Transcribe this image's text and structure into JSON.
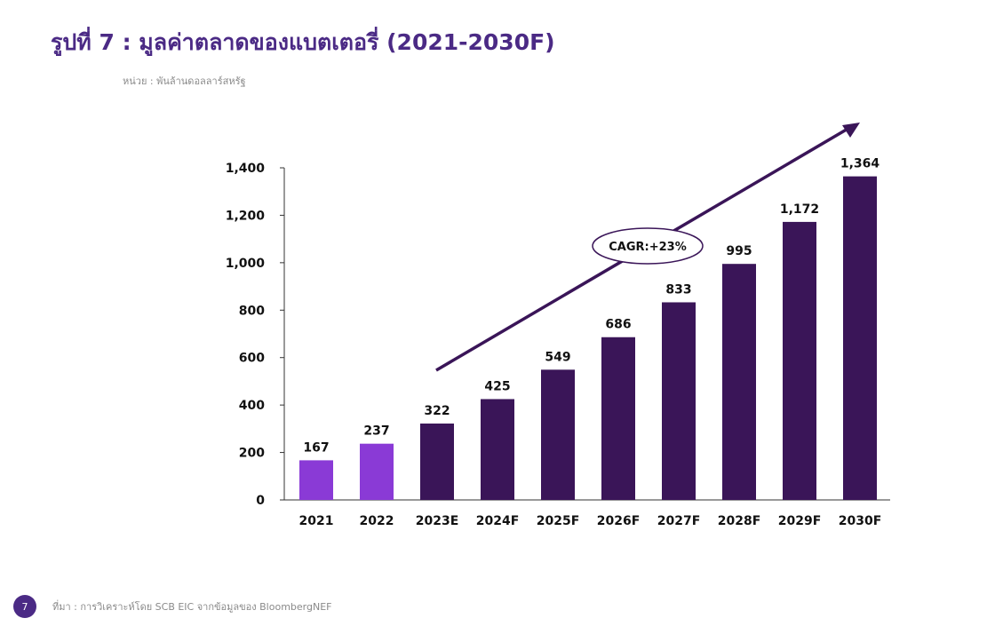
{
  "title": "รูปที่ 7 : มูลค่าตลาดของแบตเตอรี่ (2021-2030F)",
  "unit_note": "หน่วย : พันล้านดอลลาร์สหรัฐ",
  "page_number": "7",
  "source": "ที่มา : การวิเคราะห์โดย SCB EIC จากข้อมูลของ BloombergNEF",
  "colors": {
    "title": "#4b2a85",
    "actual_bar": "#8a3ad6",
    "forecast_bar": "#3a1558",
    "arrow": "#3a1558"
  },
  "chart_data": {
    "type": "bar",
    "categories": [
      "2021",
      "2022",
      "2023E",
      "2024F",
      "2025F",
      "2026F",
      "2027F",
      "2028F",
      "2029F",
      "2030F"
    ],
    "values": [
      167,
      237,
      322,
      425,
      549,
      686,
      833,
      995,
      1172,
      1364
    ],
    "value_labels": [
      "167",
      "237",
      "322",
      "425",
      "549",
      "686",
      "833",
      "995",
      "1,172",
      "1,364"
    ],
    "bar_kinds": [
      "actual",
      "actual",
      "forecast",
      "forecast",
      "forecast",
      "forecast",
      "forecast",
      "forecast",
      "forecast",
      "forecast"
    ],
    "ylim": [
      0,
      1400
    ],
    "y_ticks": [
      0,
      200,
      400,
      600,
      800,
      1000,
      1200,
      1400
    ],
    "y_tick_labels": [
      "0",
      "200",
      "400",
      "600",
      "800",
      "1,000",
      "1,200",
      "1,400"
    ],
    "annotation": "CAGR:+23%",
    "grid": false,
    "legend": "none"
  }
}
